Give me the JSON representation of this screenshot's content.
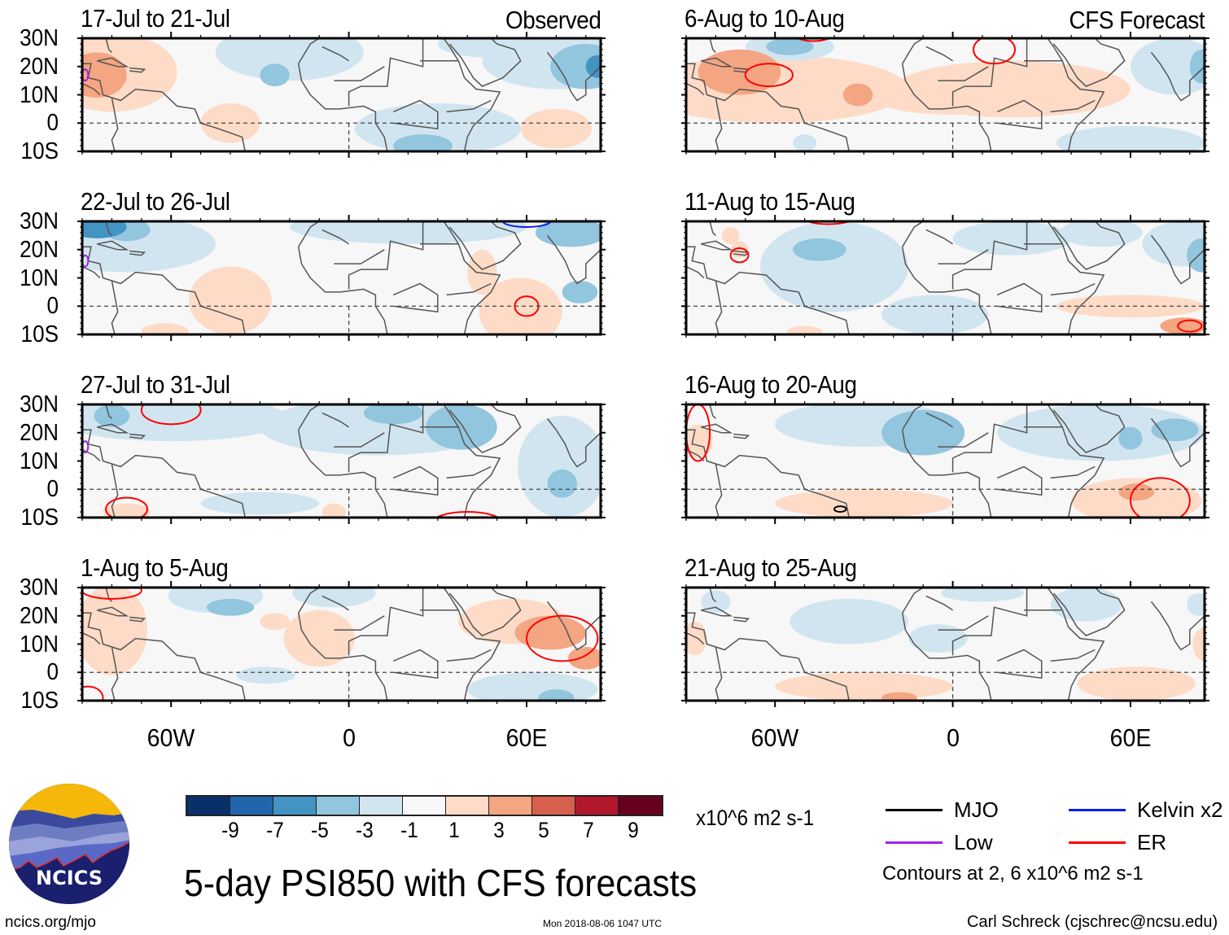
{
  "chart_data": {
    "type": "heatmap",
    "title": "5-day PSI850 with CFS forecasts",
    "variable": "PSI850 (850-hPa streamfunction anomaly)",
    "units": "x10^6 m2 s-1",
    "lat_range": [
      -10,
      30
    ],
    "lon_range": [
      -90,
      85
    ],
    "lat_ticks": [
      "30N",
      "20N",
      "10N",
      "0",
      "10S"
    ],
    "lon_ticks": [
      "60W",
      "0",
      "60E"
    ],
    "colorbar": {
      "levels": [
        -9,
        -7,
        -5,
        -3,
        -1,
        1,
        3,
        5,
        7,
        9
      ],
      "tick_labels": [
        "-9",
        "-7",
        "-5",
        "-3",
        "-1",
        "1",
        "3",
        "5",
        "7",
        "9"
      ],
      "colors": [
        "#08306b",
        "#2166ac",
        "#4393c3",
        "#92c5de",
        "#d1e5f0",
        "#f7f7f7",
        "#fddbc7",
        "#f4a582",
        "#d6604d",
        "#b2182b",
        "#67001f"
      ]
    },
    "contour_legend": [
      {
        "label": "MJO",
        "color": "#000000"
      },
      {
        "label": "Kelvin x2",
        "color": "#0000ff"
      },
      {
        "label": "Low",
        "color": "#a020f0"
      },
      {
        "label": "ER",
        "color": "#ff0000"
      }
    ],
    "contour_note": "Contours at 2, 6 x10^6 m2 s-1",
    "panels": [
      {
        "period": "17-Jul to 21-Jul",
        "tag": "Observed",
        "column": "left",
        "row": 1
      },
      {
        "period": "22-Jul to 26-Jul",
        "tag": "",
        "column": "left",
        "row": 2
      },
      {
        "period": "27-Jul to 31-Jul",
        "tag": "",
        "column": "left",
        "row": 3
      },
      {
        "period": "1-Aug to 5-Aug",
        "tag": "",
        "column": "left",
        "row": 4
      },
      {
        "period": "6-Aug to 10-Aug",
        "tag": "CFS Forecast",
        "column": "right",
        "row": 1
      },
      {
        "period": "11-Aug to 15-Aug",
        "tag": "",
        "column": "right",
        "row": 2
      },
      {
        "period": "16-Aug to 20-Aug",
        "tag": "",
        "column": "right",
        "row": 3
      },
      {
        "period": "21-Aug to 25-Aug",
        "tag": "",
        "column": "right",
        "row": 4
      }
    ]
  },
  "footer": {
    "logo_text": "NCICS",
    "site": "ncics.org/mjo",
    "timestamp": "Mon 2018-08-06 1047 UTC",
    "author": "Carl Schreck (cjschrec@ncsu.edu)"
  }
}
